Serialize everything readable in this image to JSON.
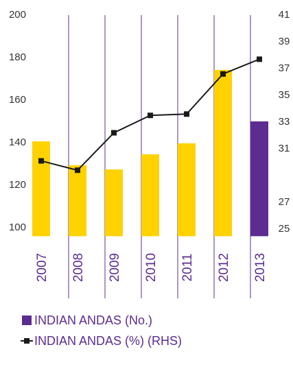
{
  "chart_data": {
    "type": "bar",
    "categories": [
      "2007",
      "2008",
      "2009",
      "2010",
      "2011",
      "2012",
      "2013"
    ],
    "series": [
      {
        "name": "INDIAN ANDAS (No.)",
        "type": "bar",
        "color": "#5b2c91",
        "colors": [
          "#ffd200",
          "#ffd200",
          "#ffd200",
          "#ffd200",
          "#ffd200",
          "#ffd200",
          "#5b2c91"
        ],
        "values": [
          140.6,
          129.4,
          127.4,
          134.5,
          139.7,
          174.2,
          150
        ]
      },
      {
        "name": "INDIAN ANDAS (%) (RHS)",
        "type": "line",
        "axis": "y2",
        "color": "#1a1a1a",
        "values": [
          30.1,
          29.4,
          32.2,
          33.5,
          33.6,
          36.6,
          37.7
        ]
      }
    ],
    "ylim": [
      96,
      200
    ],
    "yticks": [
      100,
      120,
      140,
      160,
      180,
      200
    ],
    "y2lim": [
      25,
      41
    ],
    "y2ticks": [
      25,
      27,
      31,
      33,
      35,
      37,
      39,
      41
    ],
    "legend": "bottom-left"
  }
}
